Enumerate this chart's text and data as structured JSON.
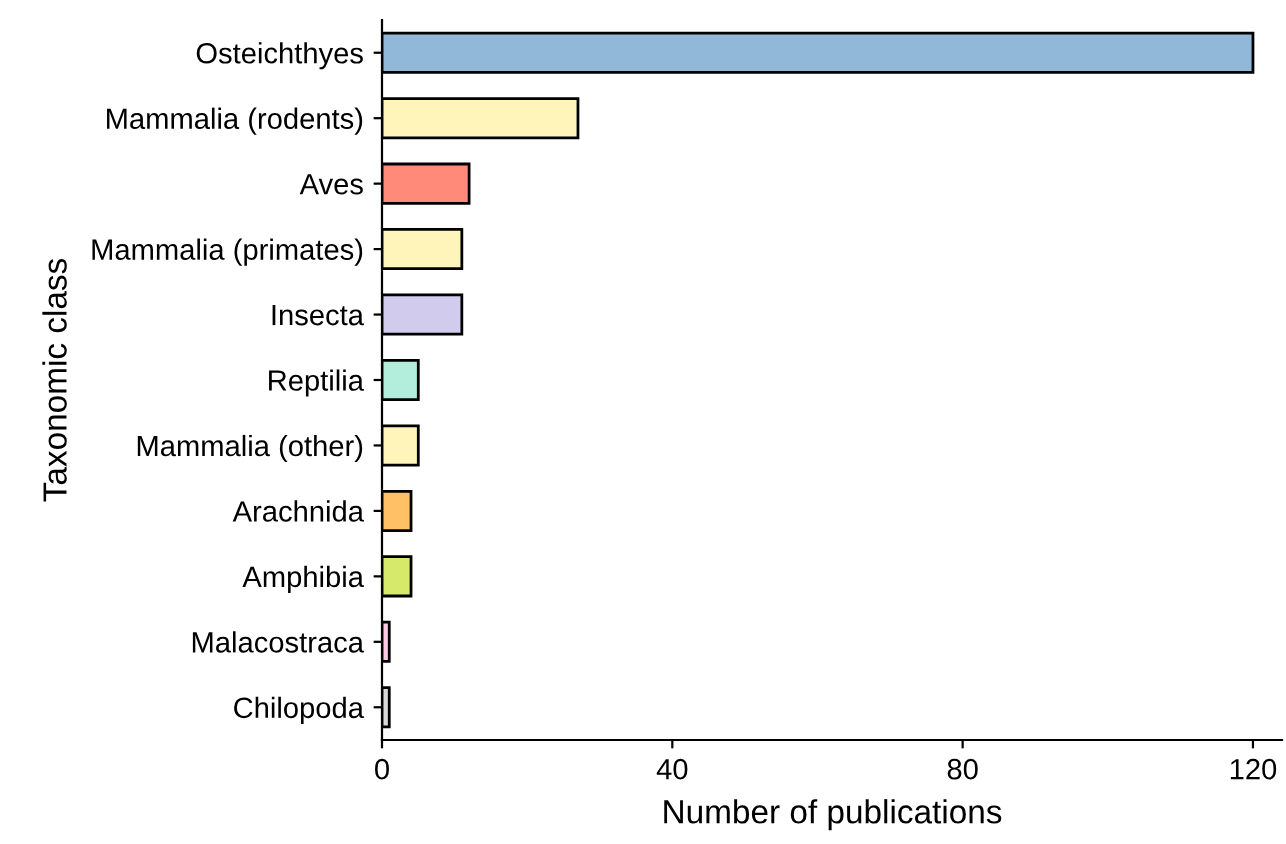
{
  "chart_data": {
    "type": "bar",
    "orientation": "horizontal",
    "xlabel": "Number of publications",
    "ylabel": "Taxonomic class",
    "categories": [
      "Osteichthyes",
      "Mammalia (rodents)",
      "Aves",
      "Mammalia (primates)",
      "Insecta",
      "Reptilia",
      "Mammalia (other)",
      "Arachnida",
      "Amphibia",
      "Malacostraca",
      "Chilopoda"
    ],
    "values": [
      120,
      27,
      12,
      11,
      11,
      5,
      5,
      4,
      4,
      1,
      1
    ],
    "colors": [
      "#92b8d9",
      "#fff5bb",
      "#ff8a7a",
      "#fff5bb",
      "#d1cbee",
      "#b3eedd",
      "#fff5bb",
      "#ffc066",
      "#d7e96a",
      "#fcc9e5",
      "#d9d9d9"
    ],
    "xlim": [
      0,
      124
    ],
    "xticks": [
      0,
      40,
      80,
      120
    ],
    "grid": false,
    "legend": false
  }
}
